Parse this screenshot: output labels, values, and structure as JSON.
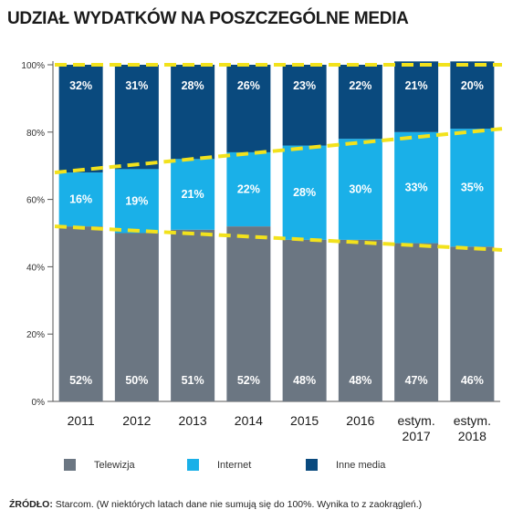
{
  "title": "UDZIAŁ WYDATKÓW NA POSZCZEGÓLNE MEDIA",
  "source": {
    "label": "ŹRÓDŁO:",
    "text": " Starcom. (W niektórych latach dane nie sumują się do 100%. Wynika to z zaokrągleń.)"
  },
  "colors": {
    "telewizja": "#6b7682",
    "internet": "#1ab0e8",
    "inne": "#0a4a7e",
    "trend": "#f2e21c"
  },
  "chart_data": {
    "type": "bar",
    "stacked": true,
    "title": "UDZIAŁ WYDATKÓW NA POSZCZEGÓLNE MEDIA",
    "categories": [
      "2011",
      "2012",
      "2013",
      "2014",
      "2015",
      "2016",
      "estym. 2017",
      "estym. 2018"
    ],
    "y_ticks": [
      "0%",
      "20%",
      "40%",
      "60%",
      "80%",
      "100%"
    ],
    "ylim": [
      0,
      100
    ],
    "series": [
      {
        "name": "Telewizja",
        "values": [
          52,
          50,
          51,
          52,
          48,
          48,
          47,
          46
        ],
        "labels": [
          "52%",
          "50%",
          "51%",
          "52%",
          "48%",
          "48%",
          "47%",
          "46%"
        ]
      },
      {
        "name": "Internet",
        "values": [
          16,
          19,
          21,
          22,
          28,
          30,
          33,
          35
        ],
        "labels": [
          "16%",
          "19%",
          "21%",
          "22%",
          "28%",
          "30%",
          "33%",
          "35%"
        ]
      },
      {
        "name": "Inne media",
        "values": [
          32,
          31,
          28,
          26,
          23,
          22,
          21,
          20
        ],
        "labels": [
          "32%",
          "31%",
          "28%",
          "26%",
          "23%",
          "22%",
          "21%",
          "20%"
        ]
      }
    ],
    "trend_lines": [
      {
        "from": 52,
        "to": 45
      },
      {
        "from": 68,
        "to": 81
      },
      {
        "from": 100,
        "to": 100
      }
    ],
    "legend_position": "bottom",
    "grid": false
  }
}
